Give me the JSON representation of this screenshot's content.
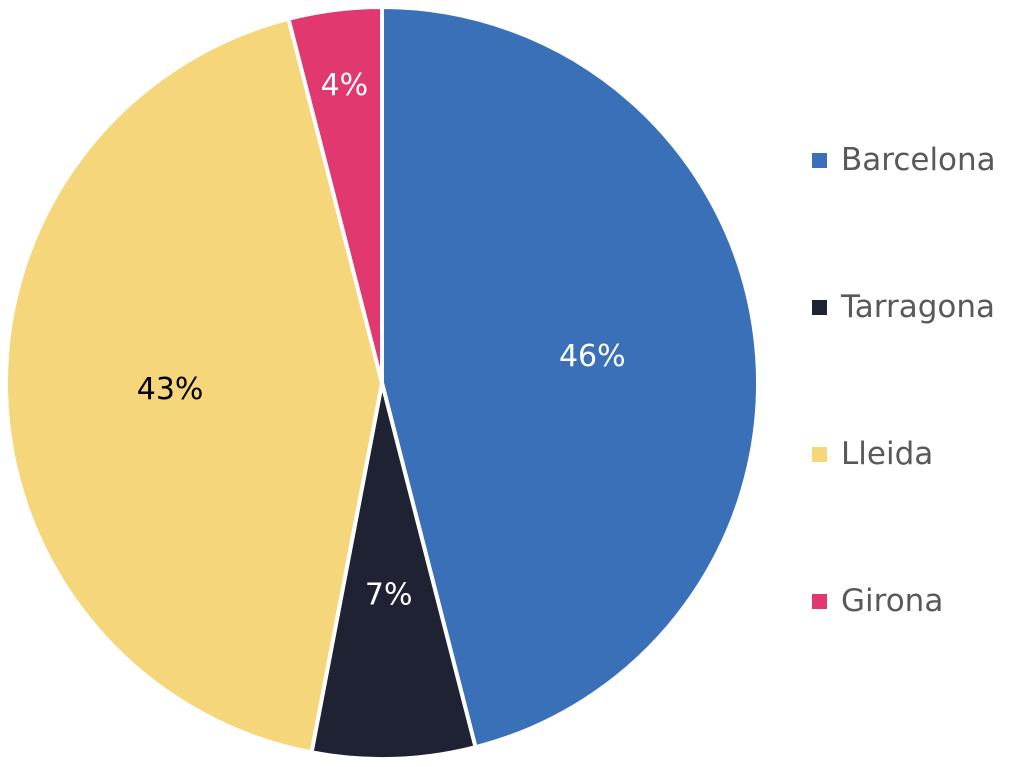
{
  "chart_data": {
    "type": "pie",
    "title": "",
    "categories": [
      "Barcelona",
      "Tarragona",
      "Lleida",
      "Girona"
    ],
    "values": [
      46,
      7,
      43,
      4
    ],
    "labels": [
      "46%",
      "7%",
      "43%",
      "4%"
    ],
    "colors": [
      "#3a70b8",
      "#1f2233",
      "#f5d67b",
      "#e0386f"
    ],
    "label_colors": [
      "#ffffff",
      "#ffffff",
      "#000000",
      "#ffffff"
    ],
    "start_angle_deg": 0,
    "direction": "clockwise",
    "legend_position": "right"
  }
}
